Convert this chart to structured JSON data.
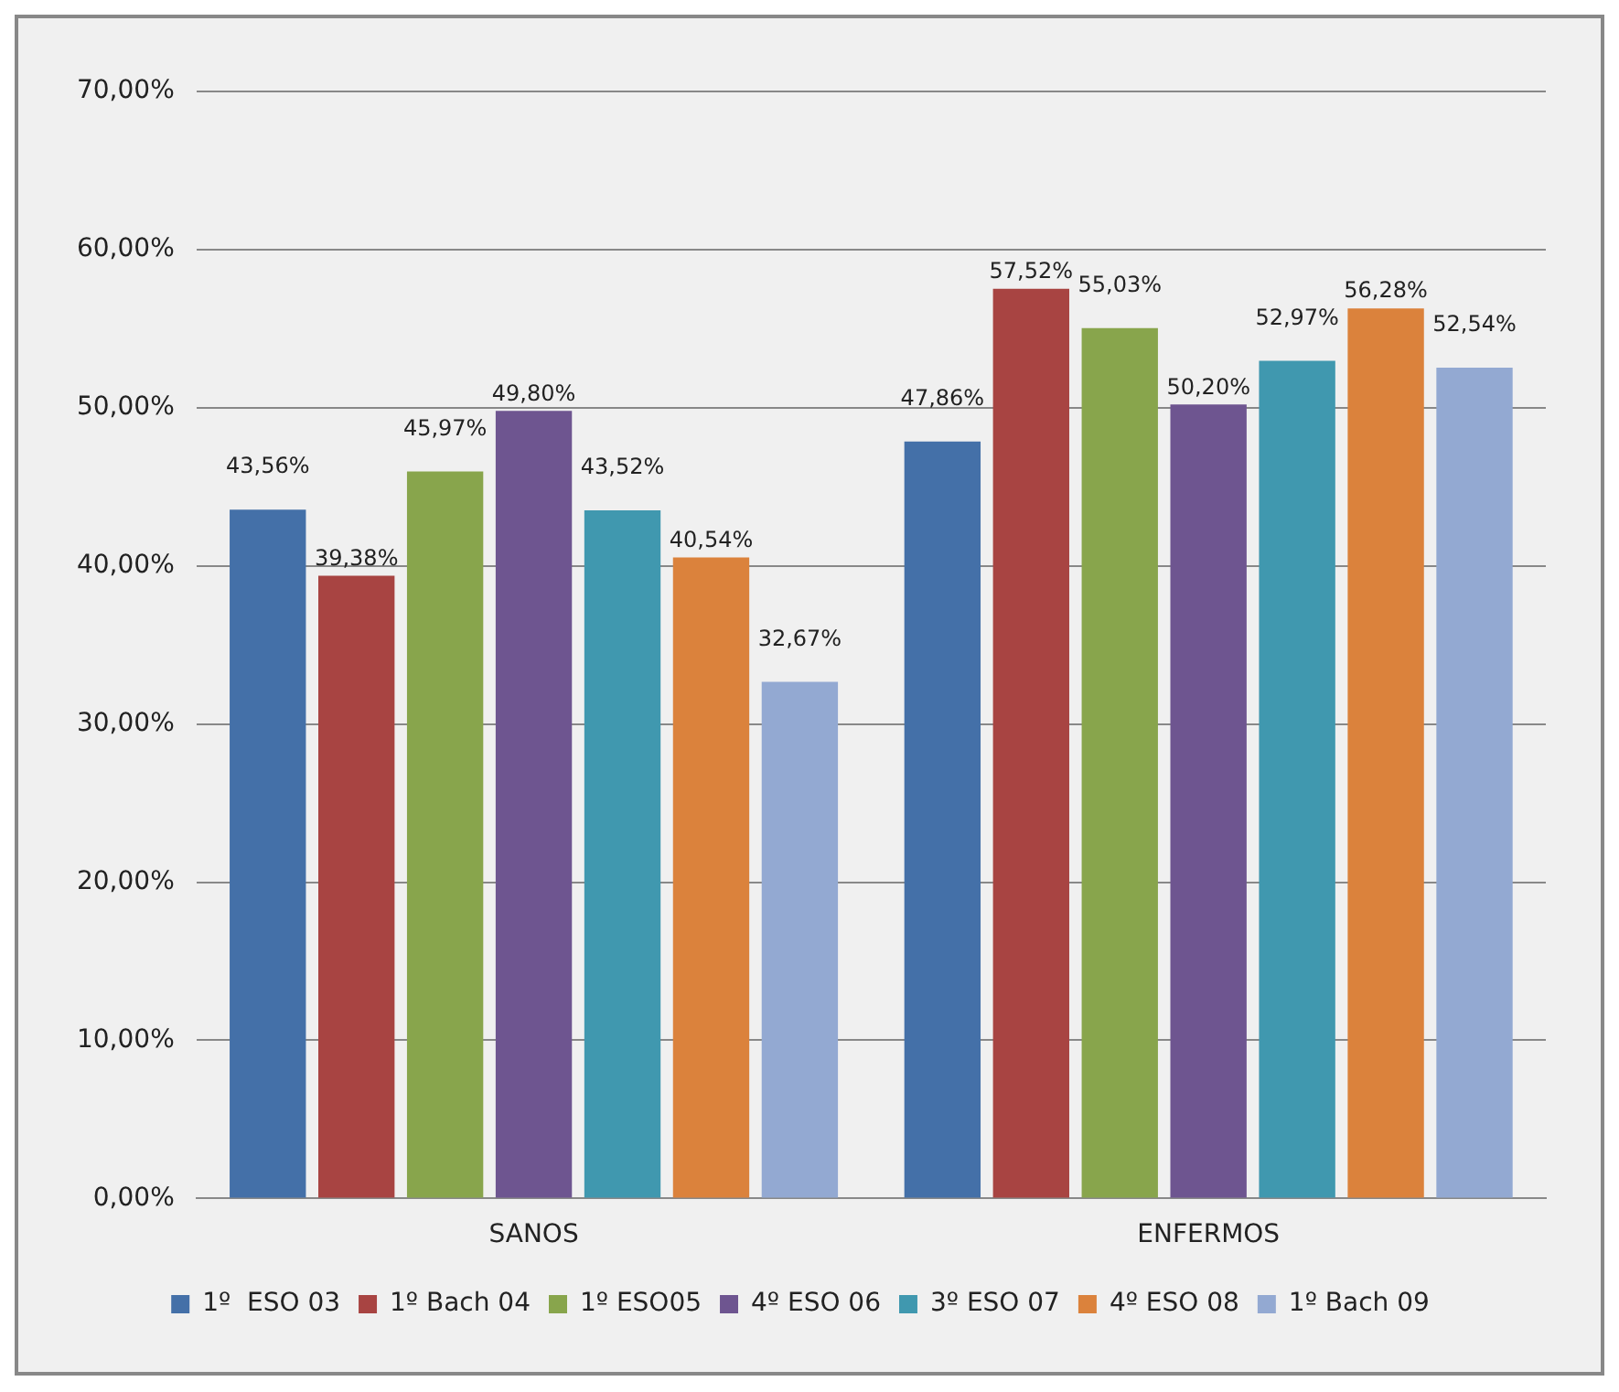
{
  "chart_data": {
    "type": "bar",
    "categories": [
      "SANOS",
      "ENFERMOS"
    ],
    "series": [
      {
        "name": "1º  ESO 03",
        "color": "#4470a8",
        "values": [
          43.56,
          47.86
        ],
        "value_labels": [
          "43,56%",
          "47,86%"
        ]
      },
      {
        "name": "1º Bach 04",
        "color": "#a84442",
        "values": [
          39.38,
          57.52
        ],
        "value_labels": [
          "39,38%",
          "57,52%"
        ]
      },
      {
        "name": "1º ESO05",
        "color": "#88a54c",
        "values": [
          45.97,
          55.03
        ],
        "value_labels": [
          "45,97%",
          "55,03%"
        ]
      },
      {
        "name": "4º ESO 06",
        "color": "#6e5590",
        "values": [
          49.8,
          50.2
        ],
        "value_labels": [
          "49,80%",
          "50,20%"
        ]
      },
      {
        "name": "3º ESO 07",
        "color": "#4098af",
        "values": [
          43.52,
          52.97
        ],
        "value_labels": [
          "43,52%",
          "52,97%"
        ]
      },
      {
        "name": "4º ESO 08",
        "color": "#db823c",
        "values": [
          40.54,
          56.28
        ],
        "value_labels": [
          "40,54%",
          "56,28%"
        ]
      },
      {
        "name": "1º Bach 09",
        "color": "#93a9d2",
        "values": [
          32.67,
          52.54
        ],
        "value_labels": [
          "32,67%",
          "52,54%"
        ]
      }
    ],
    "ylim": [
      0,
      70
    ],
    "yticks": [
      {
        "value": 0,
        "label": "0,00%"
      },
      {
        "value": 10,
        "label": "10,00%"
      },
      {
        "value": 20,
        "label": "20,00%"
      },
      {
        "value": 30,
        "label": "30,00%"
      },
      {
        "value": 40,
        "label": "40,00%"
      },
      {
        "value": 50,
        "label": "50,00%"
      },
      {
        "value": 60,
        "label": "60,00%"
      },
      {
        "value": 70,
        "label": "70,00%"
      }
    ],
    "grid": "y",
    "legend": "bottom"
  }
}
